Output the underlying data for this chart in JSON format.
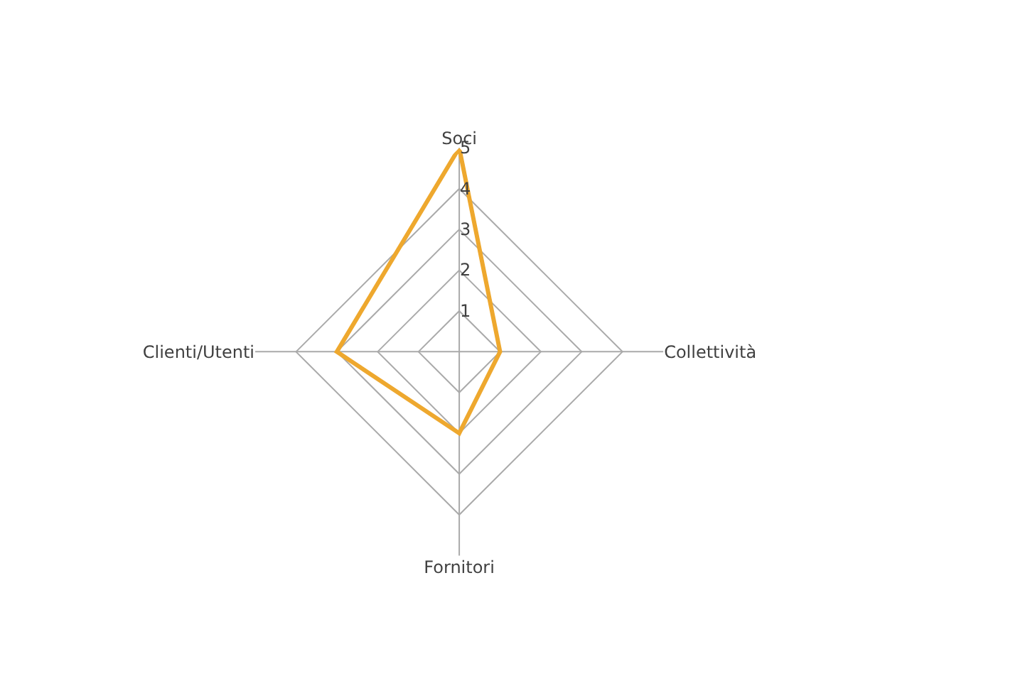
{
  "chart_data": {
    "type": "radar",
    "categories": [
      "Soci",
      "Collettività",
      "Fornitori",
      "Clienti/Utenti"
    ],
    "series": [
      {
        "color": "#eea82e",
        "values": [
          5,
          1,
          2,
          3
        ]
      }
    ],
    "ylim": [
      0,
      5
    ],
    "yticks": [
      1,
      2,
      3,
      4,
      5
    ],
    "grid": true,
    "legend": false,
    "marker": "none"
  }
}
